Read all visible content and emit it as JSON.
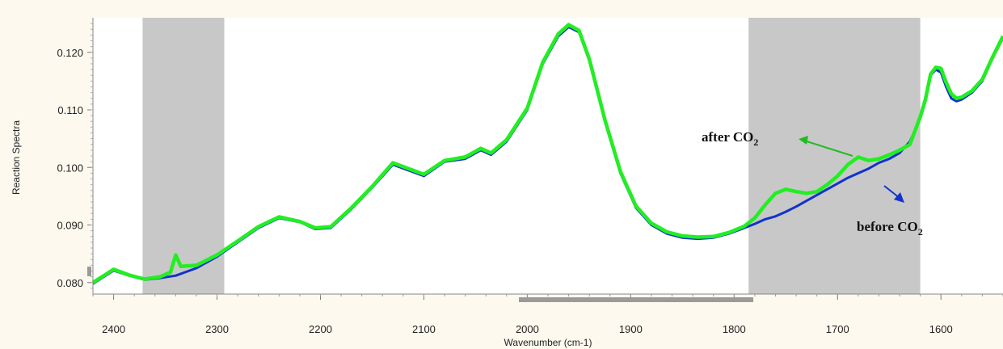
{
  "chart_data": {
    "type": "line",
    "title": "",
    "xlabel": "Wavenumber (cm-1)",
    "ylabel": "Reaction Spectra",
    "xlim": [
      2420,
      1540
    ],
    "ylim": [
      0.078,
      0.126
    ],
    "x_reversed": true,
    "x_ticks": [
      {
        "value": 2400,
        "label": "2400"
      },
      {
        "value": 2300,
        "label": "2300"
      },
      {
        "value": 2200,
        "label": "2200"
      },
      {
        "value": 2100,
        "label": "2100"
      },
      {
        "value": 2000,
        "label": "2000"
      },
      {
        "value": 1900,
        "label": "1900"
      },
      {
        "value": 1800,
        "label": "1800"
      },
      {
        "value": 1700,
        "label": "1700"
      },
      {
        "value": 1600,
        "label": "1600"
      }
    ],
    "y_ticks": [
      {
        "value": 0.08,
        "label": "0.080"
      },
      {
        "value": 0.09,
        "label": "0.090"
      },
      {
        "value": 0.1,
        "label": "0.100"
      },
      {
        "value": 0.11,
        "label": "0.110"
      },
      {
        "value": 0.12,
        "label": "0.120"
      }
    ],
    "shaded_regions": [
      {
        "x_from": 2372,
        "x_to": 2293
      },
      {
        "x_from": 1786,
        "x_to": 1620
      }
    ],
    "colors": {
      "after": "#22ee22",
      "before": "#1133cc",
      "shade": "#c8c8c8",
      "frame_bg": "#fdf9ee"
    },
    "series": [
      {
        "key": "before",
        "x": [
          2420,
          2400,
          2385,
          2370,
          2355,
          2340,
          2320,
          2300,
          2280,
          2260,
          2240,
          2220,
          2205,
          2190,
          2170,
          2150,
          2130,
          2115,
          2100,
          2080,
          2060,
          2045,
          2035,
          2020,
          2000,
          1985,
          1970,
          1960,
          1950,
          1940,
          1925,
          1910,
          1895,
          1880,
          1865,
          1850,
          1835,
          1820,
          1805,
          1790,
          1780,
          1770,
          1760,
          1750,
          1740,
          1730,
          1720,
          1710,
          1700,
          1690,
          1680,
          1670,
          1660,
          1650,
          1640,
          1630,
          1620,
          1615,
          1610,
          1605,
          1600,
          1595,
          1590,
          1585,
          1580,
          1570,
          1560,
          1550,
          1540
        ],
        "y": [
          0.0798,
          0.0821,
          0.0812,
          0.0805,
          0.0808,
          0.0812,
          0.0825,
          0.0845,
          0.087,
          0.0895,
          0.0912,
          0.0905,
          0.0893,
          0.0895,
          0.0928,
          0.0965,
          0.1005,
          0.0995,
          0.0985,
          0.101,
          0.1015,
          0.103,
          0.1022,
          0.1045,
          0.11,
          0.118,
          0.1228,
          0.1244,
          0.1235,
          0.1185,
          0.108,
          0.099,
          0.093,
          0.09,
          0.0885,
          0.0878,
          0.0876,
          0.0878,
          0.0885,
          0.0895,
          0.0902,
          0.091,
          0.0915,
          0.0923,
          0.0932,
          0.0942,
          0.0952,
          0.0962,
          0.0972,
          0.0982,
          0.099,
          0.0998,
          0.1008,
          0.1015,
          0.1025,
          0.1045,
          0.1085,
          0.1115,
          0.116,
          0.117,
          0.1165,
          0.114,
          0.112,
          0.1115,
          0.1118,
          0.113,
          0.115,
          0.119,
          0.1225
        ]
      },
      {
        "key": "after",
        "x": [
          2420,
          2400,
          2385,
          2370,
          2355,
          2345,
          2340,
          2335,
          2320,
          2300,
          2280,
          2260,
          2240,
          2220,
          2205,
          2190,
          2170,
          2150,
          2130,
          2115,
          2100,
          2080,
          2060,
          2045,
          2035,
          2020,
          2000,
          1985,
          1970,
          1960,
          1950,
          1940,
          1925,
          1910,
          1895,
          1880,
          1865,
          1850,
          1835,
          1820,
          1805,
          1790,
          1780,
          1770,
          1760,
          1750,
          1740,
          1730,
          1720,
          1710,
          1700,
          1690,
          1680,
          1670,
          1660,
          1650,
          1640,
          1630,
          1620,
          1615,
          1610,
          1605,
          1600,
          1595,
          1590,
          1585,
          1580,
          1570,
          1560,
          1550,
          1540
        ],
        "y": [
          0.08,
          0.0823,
          0.0813,
          0.0806,
          0.081,
          0.0818,
          0.0848,
          0.0828,
          0.083,
          0.0848,
          0.0872,
          0.0897,
          0.0914,
          0.0906,
          0.0895,
          0.0897,
          0.093,
          0.0967,
          0.1008,
          0.0998,
          0.0988,
          0.1012,
          0.1018,
          0.1033,
          0.1025,
          0.1048,
          0.1103,
          0.1183,
          0.1232,
          0.1248,
          0.1238,
          0.1188,
          0.1083,
          0.0993,
          0.0933,
          0.0903,
          0.0888,
          0.0881,
          0.0879,
          0.088,
          0.0887,
          0.0898,
          0.0912,
          0.0935,
          0.0955,
          0.0962,
          0.0958,
          0.0955,
          0.0958,
          0.097,
          0.0985,
          0.1005,
          0.1018,
          0.1012,
          0.1015,
          0.1022,
          0.103,
          0.104,
          0.1088,
          0.1118,
          0.1162,
          0.1174,
          0.1172,
          0.1148,
          0.1128,
          0.112,
          0.1122,
          0.1133,
          0.1153,
          0.1192,
          0.1228
        ]
      }
    ],
    "annotations": [
      {
        "key": "after",
        "text": "after CO",
        "sub": "2"
      },
      {
        "key": "before",
        "text": "before CO",
        "sub": "2"
      }
    ]
  }
}
